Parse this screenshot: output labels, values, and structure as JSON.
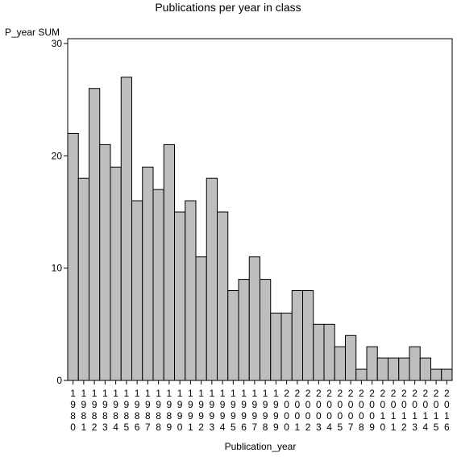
{
  "chart_data": {
    "type": "bar",
    "title": "Publications per year in class",
    "xlabel": "Publication_year",
    "ylabel": "P_year SUM",
    "ylim": [
      0,
      30
    ],
    "yticks": [
      0,
      10,
      20,
      30
    ],
    "categories": [
      "1980",
      "1981",
      "1982",
      "1983",
      "1984",
      "1985",
      "1986",
      "1987",
      "1988",
      "1989",
      "1990",
      "1991",
      "1992",
      "1993",
      "1994",
      "1995",
      "1996",
      "1997",
      "1998",
      "1999",
      "2000",
      "2001",
      "2002",
      "2003",
      "2004",
      "2005",
      "2007",
      "2008",
      "2009",
      "2010",
      "2011",
      "2012",
      "2013",
      "2014",
      "2015",
      "2016"
    ],
    "values": [
      22,
      18,
      26,
      21,
      19,
      27,
      16,
      19,
      17,
      21,
      15,
      16,
      11,
      18,
      15,
      8,
      9,
      11,
      9,
      6,
      6,
      8,
      8,
      5,
      5,
      3,
      4,
      1,
      3,
      2,
      2,
      2,
      3,
      2,
      1,
      1
    ],
    "bar_color": "#bebebe",
    "grid": false,
    "legend": "none"
  }
}
